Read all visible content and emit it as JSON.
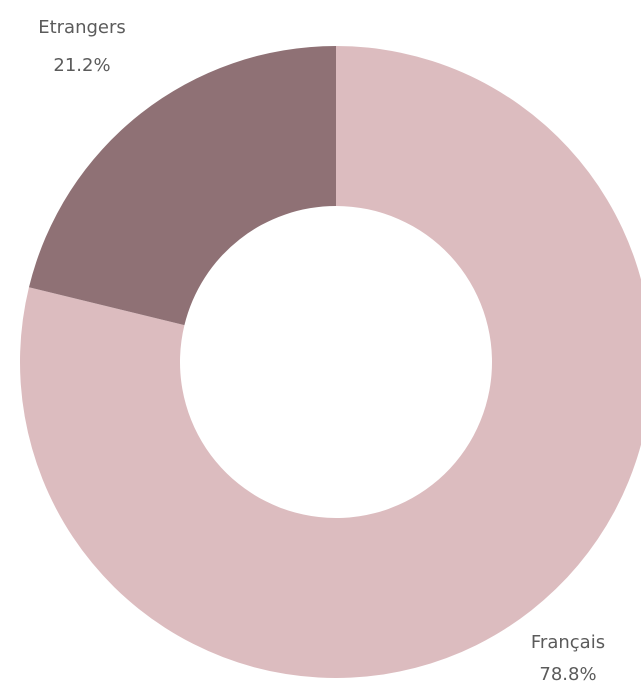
{
  "chart_data": {
    "type": "pie",
    "donut": true,
    "categories": [
      "Français",
      "Etrangers"
    ],
    "values": [
      78.8,
      21.2
    ],
    "value_labels": [
      "78.8%",
      "21.2%"
    ],
    "colors": [
      "#dcbcbf",
      "#8f7175"
    ],
    "title": "",
    "legend": "none"
  }
}
